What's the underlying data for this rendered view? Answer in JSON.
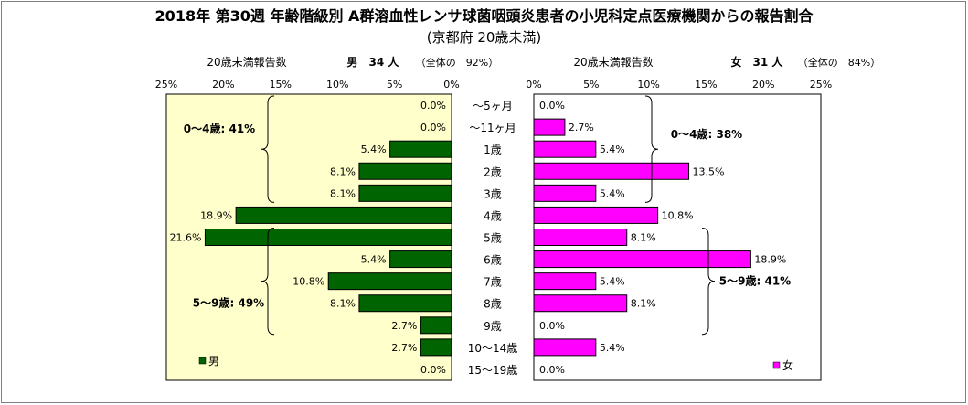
{
  "chart_data": {
    "type": "bar",
    "orientation": "horizontal",
    "layout": "butterfly",
    "title": "2018年 第30週 年齢階級別 A群溶血性レンサ球菌咽頭炎患者の小児科定点医療機関からの報告割合",
    "subtitle": "(京都府 20歳未満)",
    "categories": [
      "～5ヶ月",
      "～11ヶ月",
      "1歳",
      "2歳",
      "3歳",
      "4歳",
      "5歳",
      "6歳",
      "7歳",
      "8歳",
      "9歳",
      "10～14歳",
      "15～19歳"
    ],
    "xlim": [
      0,
      25
    ],
    "ticks": [
      "0%",
      "5%",
      "10%",
      "15%",
      "20%",
      "25%"
    ],
    "grid": false,
    "series": [
      {
        "name": "男",
        "side": "left",
        "color": "#006400",
        "header_label": "20歳未満報告数",
        "header_count": "男　34 人",
        "header_share": "（全体の　92%）",
        "values": [
          0.0,
          0.0,
          5.4,
          8.1,
          8.1,
          18.9,
          21.6,
          5.4,
          10.8,
          8.1,
          2.7,
          2.7,
          0.0
        ],
        "labels": [
          "0.0%",
          "0.0%",
          "5.4%",
          "8.1%",
          "8.1%",
          "18.9%",
          "21.6%",
          "5.4%",
          "10.8%",
          "8.1%",
          "2.7%",
          "2.7%",
          "0.0%"
        ],
        "group_annotations": [
          "0～4歳: 41%",
          "5～9歳: 49%"
        ],
        "legend": "男"
      },
      {
        "name": "女",
        "side": "right",
        "color": "#FF00FF",
        "header_label": "20歳未満報告数",
        "header_count": "女　31 人",
        "header_share": "（全体の　84%）",
        "values": [
          0.0,
          2.7,
          5.4,
          13.5,
          5.4,
          10.8,
          8.1,
          18.9,
          5.4,
          8.1,
          0.0,
          5.4,
          0.0
        ],
        "labels": [
          "0.0%",
          "2.7%",
          "5.4%",
          "13.5%",
          "5.4%",
          "10.8%",
          "8.1%",
          "18.9%",
          "5.4%",
          "8.1%",
          "0.0%",
          "5.4%",
          "0.0%"
        ],
        "group_annotations": [
          "0～4歳: 38%",
          "5～9歳: 41%"
        ],
        "legend": "女"
      }
    ],
    "colors": {
      "left_panel_bg": "#FFFFCC",
      "right_panel_bg": "#FFFFFF"
    },
    "legend_position": "bottom-left of each panel"
  }
}
